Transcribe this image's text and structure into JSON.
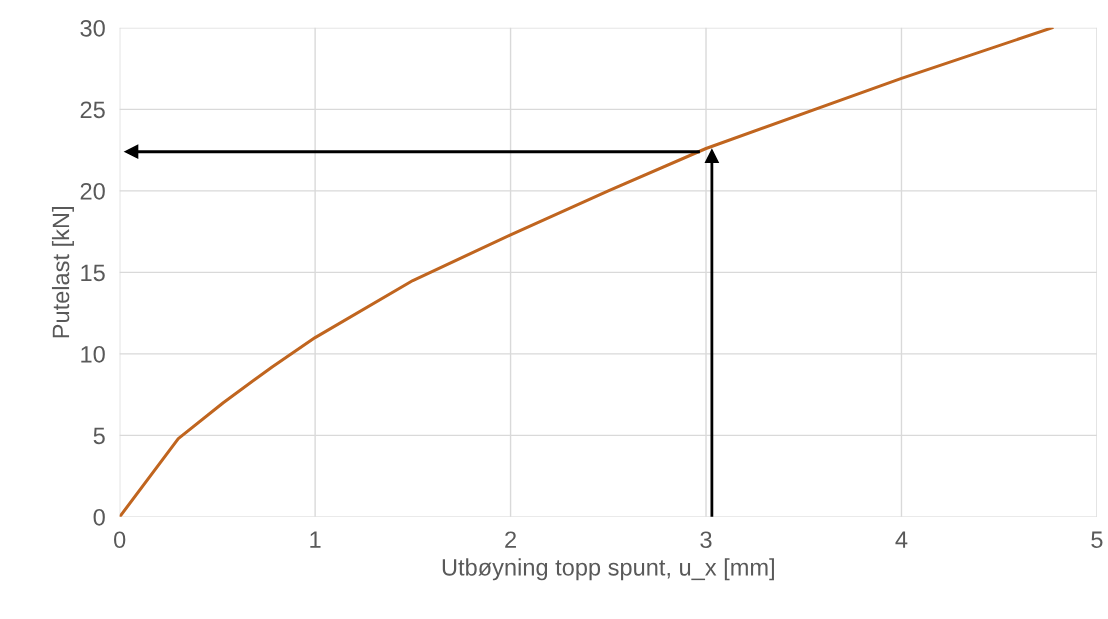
{
  "chart_data": {
    "type": "line",
    "xlabel": "Utbøyning topp spunt, u_x [mm]",
    "ylabel": "Putelast [kN]",
    "x": [
      0,
      0.3,
      0.53,
      0.78,
      1.0,
      1.5,
      2.0,
      2.5,
      3.0,
      4.0,
      4.77
    ],
    "series": [
      {
        "color": "#c0651f",
        "values": [
          0,
          4.8,
          7.0,
          9.2,
          11.0,
          14.5,
          17.3,
          20.0,
          22.6,
          26.9,
          30
        ]
      }
    ],
    "xlim": [
      0,
      5
    ],
    "xticks": [
      0,
      1,
      2,
      3,
      4,
      5
    ],
    "ylim": [
      0,
      30
    ],
    "yticks": [
      0,
      5,
      10,
      15,
      20,
      25,
      30
    ],
    "grid": true,
    "marker": "none",
    "line_style": "solid",
    "ref_lines": [
      {
        "axis": "x",
        "value": 3.03,
        "color": "#000000"
      },
      {
        "axis": "y",
        "value": 22.4,
        "color": "#000000"
      }
    ]
  }
}
